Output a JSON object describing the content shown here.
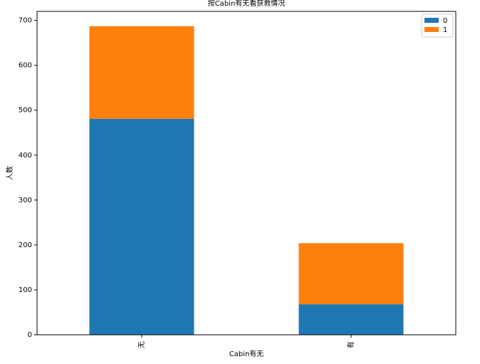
{
  "chart_data": {
    "type": "stacked-bar",
    "title": "按Cabin有无看获救情况",
    "x_label": "Cabin有无",
    "y_label": "人数",
    "categories": [
      "无",
      "有"
    ],
    "series": [
      {
        "name": "0",
        "color": "#1f77b4",
        "values": [
          481,
          68
        ]
      },
      {
        "name": "1",
        "color": "#ff7f0e",
        "values": [
          206,
          136
        ]
      }
    ],
    "ylim": [
      0,
      720
    ],
    "yticks": [
      0,
      100,
      200,
      300,
      400,
      500,
      600,
      700
    ],
    "legend": "upper right"
  }
}
